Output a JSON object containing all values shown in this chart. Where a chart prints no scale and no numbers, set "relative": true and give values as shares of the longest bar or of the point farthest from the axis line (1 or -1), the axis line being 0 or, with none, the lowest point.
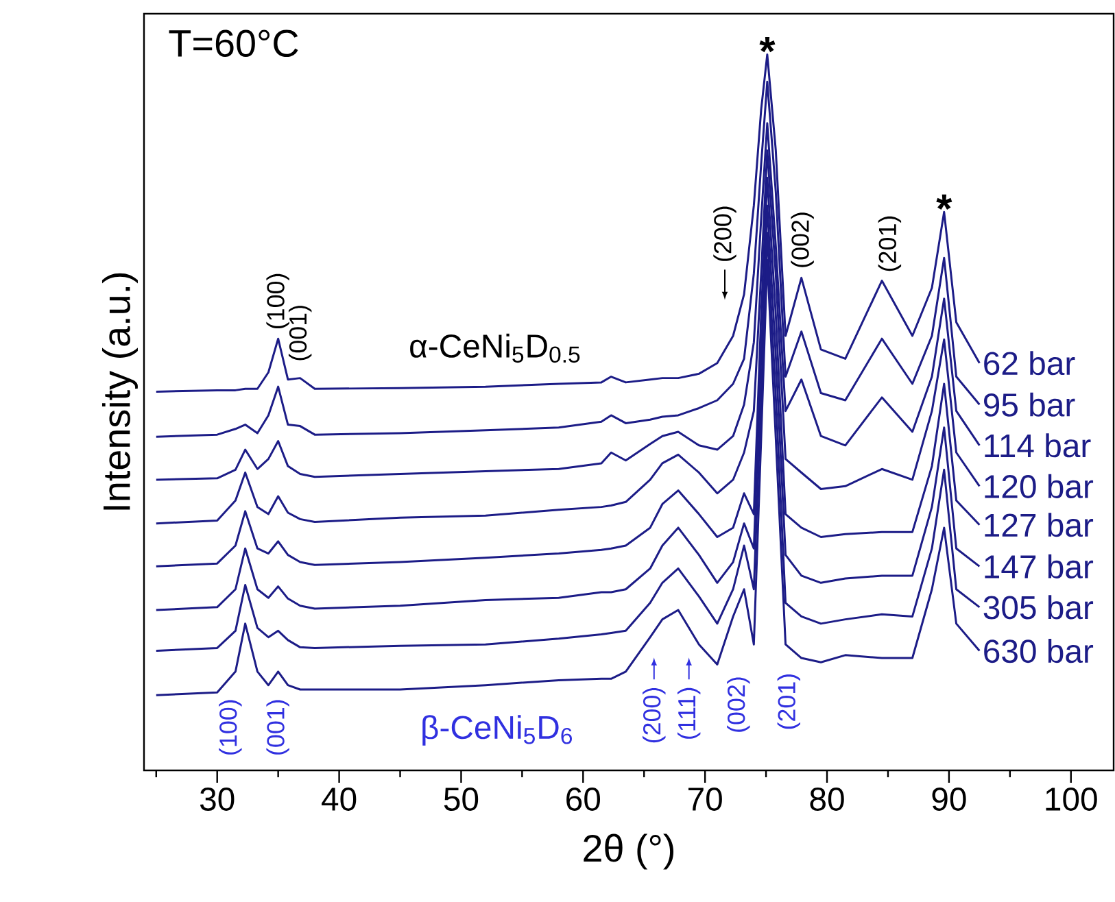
{
  "chart_data": {
    "type": "line",
    "relative": true,
    "xlabel": "2θ (°)",
    "ylabel": "Intensity (a.u.)",
    "xlim": [
      24,
      103.5
    ],
    "xticks": [
      {
        "value": 25,
        "label": null
      },
      30,
      {
        "value": 35,
        "label": null
      },
      40,
      {
        "value": 45,
        "label": null
      },
      50,
      {
        "value": 55,
        "label": null
      },
      60,
      {
        "value": 65,
        "label": null
      },
      70,
      {
        "value": 75,
        "label": null
      },
      80,
      {
        "value": 85,
        "label": null
      },
      90,
      {
        "value": 95,
        "label": null
      },
      100
    ],
    "x": [
      25,
      30,
      31.5,
      32.3,
      33.3,
      34.2,
      35,
      35.8,
      36.8,
      38,
      45,
      52,
      58,
      61.5,
      62.3,
      63.5,
      65.5,
      66.5,
      67.8,
      69.5,
      71,
      72.3,
      73.2,
      74,
      74.6,
      75.1,
      75.8,
      76.6,
      77.9,
      79.5,
      81.5,
      84.5,
      87,
      88.6,
      89.6,
      90.6,
      92.5
    ],
    "series": [
      {
        "name": "62 bar",
        "color": "#1c1c87",
        "values": [
          0.529,
          0.531,
          0.531,
          0.533,
          0.533,
          0.556,
          0.603,
          0.546,
          0.548,
          0.533,
          0.534,
          0.536,
          0.54,
          0.542,
          0.55,
          0.542,
          0.546,
          0.548,
          0.548,
          0.554,
          0.569,
          0.607,
          0.665,
          0.789,
          0.923,
          1.0,
          0.866,
          0.607,
          0.688,
          0.588,
          0.575,
          0.684,
          0.607,
          0.674,
          0.78,
          0.626,
          0.569
        ]
      },
      {
        "name": "95 bar",
        "color": "#1c1c87",
        "values": [
          0.466,
          0.469,
          0.477,
          0.483,
          0.471,
          0.496,
          0.536,
          0.483,
          0.481,
          0.469,
          0.471,
          0.475,
          0.479,
          0.487,
          0.496,
          0.485,
          0.49,
          0.494,
          0.496,
          0.506,
          0.517,
          0.54,
          0.575,
          0.694,
          0.847,
          0.962,
          0.808,
          0.55,
          0.613,
          0.527,
          0.517,
          0.603,
          0.54,
          0.607,
          0.716,
          0.55,
          0.511
        ]
      },
      {
        "name": "114 bar",
        "color": "#1c1c87",
        "values": [
          0.406,
          0.408,
          0.42,
          0.448,
          0.421,
          0.435,
          0.46,
          0.425,
          0.414,
          0.41,
          0.414,
          0.418,
          0.421,
          0.429,
          0.444,
          0.433,
          0.456,
          0.467,
          0.473,
          0.454,
          0.448,
          0.467,
          0.511,
          0.598,
          0.77,
          0.904,
          0.732,
          0.502,
          0.546,
          0.467,
          0.454,
          0.521,
          0.473,
          0.55,
          0.659,
          0.502,
          0.454
        ]
      },
      {
        "name": "120 bar",
        "color": "#1c1c87",
        "values": [
          0.345,
          0.349,
          0.377,
          0.416,
          0.368,
          0.358,
          0.383,
          0.36,
          0.351,
          0.347,
          0.353,
          0.356,
          0.364,
          0.368,
          0.37,
          0.375,
          0.406,
          0.429,
          0.441,
          0.416,
          0.387,
          0.406,
          0.444,
          0.502,
          0.693,
          0.866,
          0.693,
          0.435,
          0.416,
          0.393,
          0.397,
          0.421,
          0.406,
          0.502,
          0.602,
          0.444,
          0.397
        ]
      },
      {
        "name": "127 bar",
        "color": "#1c1c87",
        "values": [
          0.285,
          0.289,
          0.314,
          0.362,
          0.31,
          0.303,
          0.32,
          0.301,
          0.291,
          0.287,
          0.291,
          0.297,
          0.303,
          0.308,
          0.31,
          0.314,
          0.339,
          0.372,
          0.391,
          0.358,
          0.326,
          0.339,
          0.387,
          0.358,
          0.636,
          0.828,
          0.636,
          0.358,
          0.339,
          0.326,
          0.33,
          0.333,
          0.333,
          0.425,
          0.54,
          0.377,
          0.343
        ]
      },
      {
        "name": "147 bar",
        "color": "#1c1c87",
        "values": [
          0.224,
          0.228,
          0.253,
          0.31,
          0.253,
          0.241,
          0.257,
          0.24,
          0.23,
          0.226,
          0.23,
          0.238,
          0.241,
          0.249,
          0.249,
          0.253,
          0.282,
          0.314,
          0.339,
          0.301,
          0.262,
          0.291,
          0.345,
          0.31,
          0.579,
          0.789,
          0.579,
          0.301,
          0.272,
          0.262,
          0.268,
          0.272,
          0.272,
          0.368,
          0.479,
          0.31,
          0.285
        ]
      },
      {
        "name": "305 bar",
        "color": "#1c1c87",
        "values": [
          0.167,
          0.171,
          0.195,
          0.259,
          0.199,
          0.186,
          0.195,
          0.182,
          0.172,
          0.171,
          0.174,
          0.176,
          0.184,
          0.19,
          0.192,
          0.195,
          0.234,
          0.262,
          0.282,
          0.243,
          0.205,
          0.253,
          0.314,
          0.253,
          0.521,
          0.751,
          0.521,
          0.234,
          0.215,
          0.205,
          0.211,
          0.218,
          0.215,
          0.31,
          0.42,
          0.253,
          0.228
        ]
      },
      {
        "name": "630 bar",
        "color": "#1c1c87",
        "values": [
          0.105,
          0.109,
          0.138,
          0.205,
          0.138,
          0.119,
          0.138,
          0.119,
          0.113,
          0.113,
          0.113,
          0.119,
          0.126,
          0.128,
          0.128,
          0.138,
          0.186,
          0.211,
          0.224,
          0.176,
          0.148,
          0.215,
          0.253,
          0.176,
          0.464,
          0.713,
          0.464,
          0.176,
          0.157,
          0.151,
          0.161,
          0.157,
          0.157,
          0.253,
          0.339,
          0.205,
          0.167
        ]
      }
    ],
    "annotations": [
      "T=60°C",
      {
        "text": "*",
        "x": 75.1,
        "y": 1.0
      },
      {
        "text": "*",
        "x": 89.6,
        "y": 0.78
      },
      "(100)",
      "(001)",
      "(200)",
      "(002)",
      "(201)",
      "(100)",
      "(001)",
      "(200)",
      "(111)",
      "(002)",
      "(201)",
      "α-CeNi$_{5}$D$_{0.5}$",
      "β-CeNi$_{5}$D$_{6}$"
    ]
  }
}
